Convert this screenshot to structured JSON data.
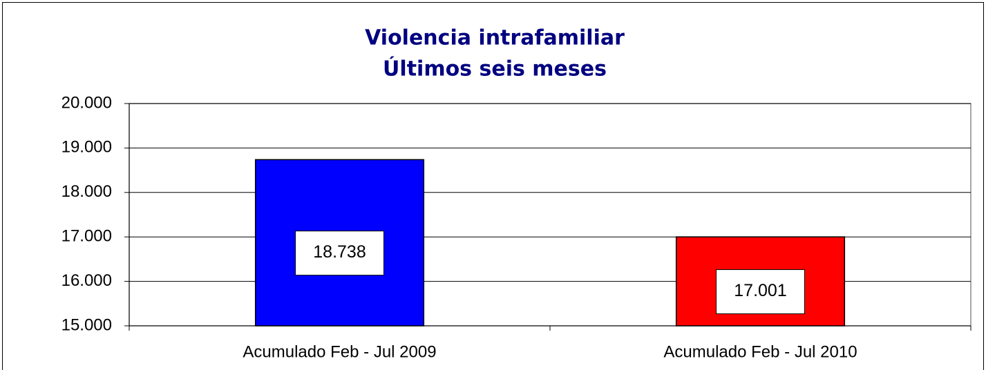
{
  "chart_data": {
    "type": "bar",
    "title": [
      "Violencia intrafamiliar",
      "Últimos seis meses"
    ],
    "categories": [
      "Acumulado Feb - Jul 2009",
      "Acumulado Feb - Jul 2010"
    ],
    "values": [
      18738,
      17001
    ],
    "value_labels": [
      "18.738",
      "17.001"
    ],
    "colors": [
      "#0000ff",
      "#ff0000"
    ],
    "ylim": [
      15000,
      20000
    ],
    "yticks": [
      {
        "value": 15000,
        "label": "15.000"
      },
      {
        "value": 16000,
        "label": "16.000"
      },
      {
        "value": 17000,
        "label": "17.000"
      },
      {
        "value": 18000,
        "label": "18.000"
      },
      {
        "value": 19000,
        "label": "19.000"
      },
      {
        "value": 20000,
        "label": "20.000"
      }
    ],
    "grid": true
  }
}
